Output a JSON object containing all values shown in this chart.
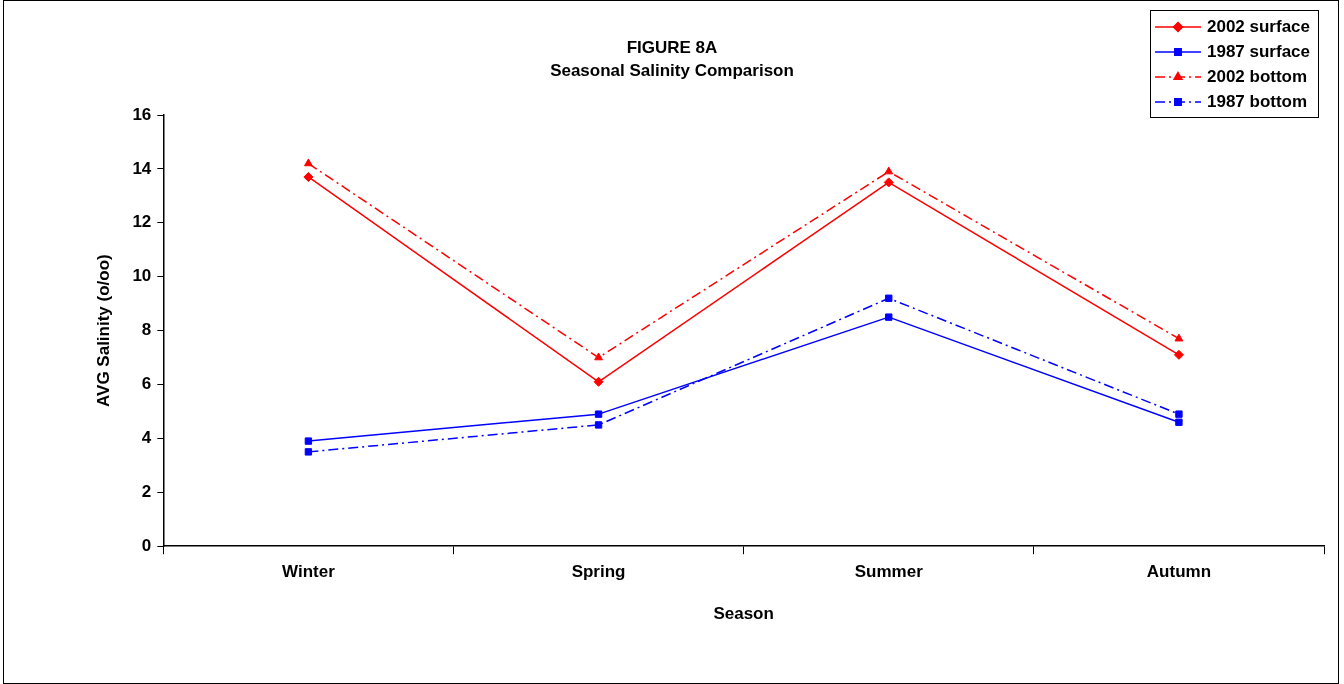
{
  "chart_data": {
    "type": "line",
    "title": "FIGURE 8A",
    "subtitle": "Seasonal Salinity Comparison",
    "xlabel": "Season",
    "ylabel": "AVG Salinity (o/oo)",
    "categories": [
      "Winter",
      "Spring",
      "Summer",
      "Autumn"
    ],
    "series": [
      {
        "name": "2002 surface",
        "color": "#ff0000",
        "marker": "diamond",
        "line_style": "solid",
        "values": [
          13.7,
          6.1,
          13.5,
          7.1
        ]
      },
      {
        "name": "1987 surface",
        "color": "#0000ff",
        "marker": "square",
        "line_style": "solid",
        "values": [
          3.9,
          4.9,
          8.5,
          4.6
        ]
      },
      {
        "name": "2002 bottom",
        "color": "#ff0000",
        "marker": "triangle",
        "line_style": "dashed",
        "values": [
          14.2,
          7.0,
          13.9,
          7.7
        ]
      },
      {
        "name": "1987 bottom",
        "color": "#0000ff",
        "marker": "square",
        "line_style": "dashed",
        "values": [
          3.5,
          4.5,
          9.2,
          4.9
        ]
      }
    ],
    "ylim": [
      0,
      16
    ],
    "yticks": [
      0,
      2,
      4,
      6,
      8,
      10,
      12,
      14,
      16
    ],
    "grid": false,
    "legend": "top right"
  }
}
